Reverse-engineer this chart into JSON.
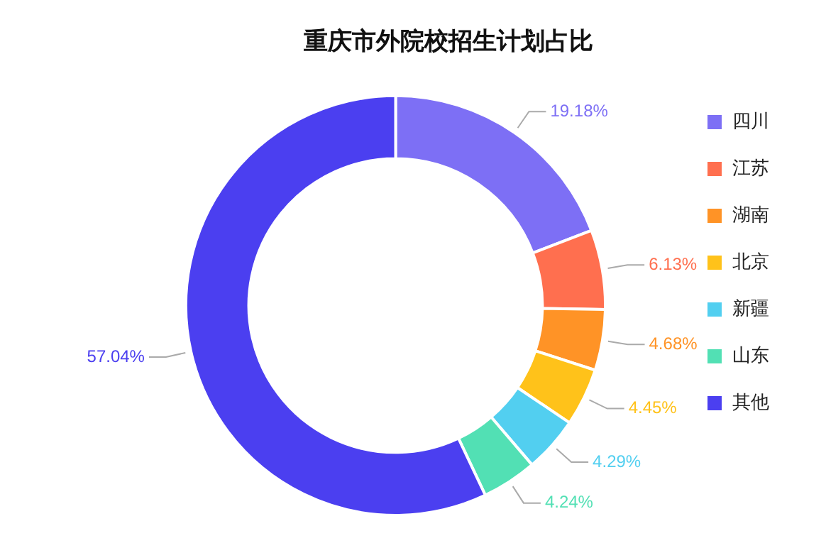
{
  "chart_data": {
    "type": "donut",
    "title": "重庆市外院校招生计划占比",
    "categories": [
      "四川",
      "江苏",
      "湖南",
      "北京",
      "新疆",
      "山东",
      "其他"
    ],
    "values": [
      19.18,
      6.13,
      4.68,
      4.45,
      4.29,
      4.24,
      57.04
    ],
    "colors": [
      "#7d6ff5",
      "#ff6f4f",
      "#ff9326",
      "#ffc21a",
      "#52cff0",
      "#52e0b4",
      "#4b3ff0"
    ],
    "value_labels": [
      "19.18%",
      "6.13%",
      "4.68%",
      "4.45%",
      "4.29%",
      "4.24%",
      "57.04%"
    ],
    "legend": "right"
  }
}
